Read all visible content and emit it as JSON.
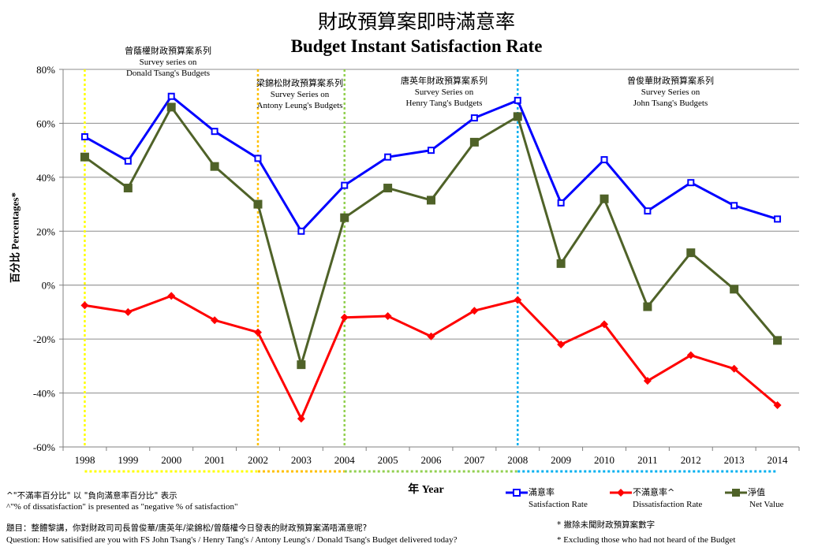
{
  "title_zh": "財政預算案即時滿意率",
  "title_en": "Budget Instant Satisfaction Rate",
  "chart_data": {
    "type": "line",
    "xlabel": "年 Year",
    "ylabel": "百分比 Percentages*",
    "categories": [
      "1998",
      "1999",
      "2000",
      "2001",
      "2002",
      "2003",
      "2004",
      "2005",
      "2006",
      "2007",
      "2008",
      "2009",
      "2010",
      "2011",
      "2012",
      "2013",
      "2014"
    ],
    "ylim": [
      -60,
      80
    ],
    "yticks": [
      "80%",
      "60%",
      "40%",
      "20%",
      "0%",
      "-20%",
      "-40%",
      "-60%"
    ],
    "grid": true,
    "series": [
      {
        "name_zh": "滿意率",
        "name": "Satisfaction Rate",
        "color": "#0000ff",
        "marker": "square-open",
        "values": [
          55,
          46,
          70,
          57,
          47,
          20,
          37,
          47.5,
          50,
          62,
          68.5,
          30.5,
          46.5,
          27.5,
          38,
          29.5,
          24.5
        ]
      },
      {
        "name_zh": "不滿意率^",
        "name": "Dissatisfaction Rate",
        "color": "#ff0000",
        "marker": "diamond",
        "values": [
          -7.5,
          -10,
          -4,
          -13,
          -17.5,
          -49.5,
          -12,
          -11.5,
          -19,
          -9.5,
          -5.5,
          -22,
          -14.5,
          -35.5,
          -26,
          -31,
          -44.5
        ]
      },
      {
        "name_zh": "淨值",
        "name": "Net Value",
        "color": "#4f6228",
        "marker": "square-filled",
        "values": [
          47.5,
          36,
          66,
          44,
          30,
          -29.5,
          25,
          36,
          31.5,
          53,
          62.5,
          8,
          32,
          -8,
          12,
          -1.5,
          -20.5
        ]
      }
    ],
    "eras": [
      {
        "year": "1998",
        "line_color": "#ffff00",
        "zh": "曾蔭權財政預算案系列",
        "en1": "Survey  series on",
        "en2": "Donald Tsang's Budgets"
      },
      {
        "year": "2002",
        "line_color": "#ffc000",
        "zh": "梁錦松財政預算案系列",
        "en1": "Survey Series on",
        "en2": "Antony Leung's Budgets"
      },
      {
        "year": "2004",
        "line_color": "#92d050",
        "zh": "唐英年財政預算案系列",
        "en1": "Survey Series on",
        "en2": "Henry Tang's Budgets"
      },
      {
        "year": "2008",
        "line_color": "#00b0f0",
        "zh": "曾俊華財政預算案系列",
        "en1": "Survey Series on",
        "en2": "John Tsang's Budgets"
      }
    ]
  },
  "notes": {
    "caret_zh": "^\"不滿率百分比\" 以 \"負向滿意率百分比\" 表示",
    "caret_en": "^\"% of dissatisfaction\" is presented as \"negative % of satisfaction\"",
    "question_zh": "題目：整體黎講，你對財政司司長曾俊華/唐英年/梁錦松/曾蔭權今日發表的財政預算案滿唔滿意呢?",
    "question_en": "Question: How satisified are you with FS John Tsang's / Henry Tang's / Antony Leung's / Donald Tsang's Budget delivered today?",
    "excl_zh": "* 撇除未聞財政預算案數字",
    "excl_en": "* Excluding  those who had not heard of the Budget"
  }
}
